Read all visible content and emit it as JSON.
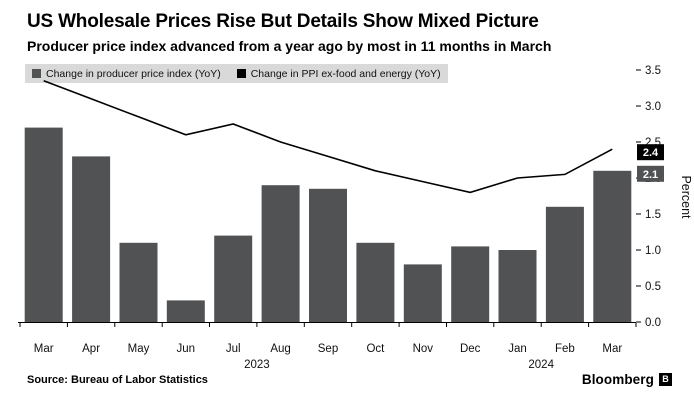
{
  "header": {
    "title": "US Wholesale Prices Rise But Details Show Mixed Picture",
    "subtitle": "Producer price index advanced from a year ago by most in 11 months in March"
  },
  "legend": [
    {
      "label": "Change in producer price index (YoY)",
      "color": "#515254"
    },
    {
      "label": "Change in PPI ex-food and energy (YoY)",
      "color": "#000000"
    }
  ],
  "chart_data": {
    "type": "bar",
    "categories": [
      "Mar",
      "Apr",
      "May",
      "Jun",
      "Jul",
      "Aug",
      "Sep",
      "Oct",
      "Nov",
      "Dec",
      "Jan",
      "Feb",
      "Mar"
    ],
    "series": [
      {
        "name": "Change in producer price index (YoY)",
        "type": "bar",
        "color": "#515254",
        "values": [
          2.7,
          2.3,
          1.1,
          0.3,
          1.2,
          1.9,
          1.85,
          1.1,
          0.8,
          1.05,
          1.0,
          1.6,
          2.1
        ]
      },
      {
        "name": "Change in PPI ex-food and energy (YoY)",
        "type": "line",
        "color": "#000000",
        "values": [
          3.35,
          3.1,
          2.85,
          2.6,
          2.75,
          2.5,
          2.3,
          2.1,
          1.95,
          1.8,
          2.0,
          2.05,
          2.4
        ]
      }
    ],
    "end_labels": [
      {
        "text": "2.4",
        "bg": "#000000",
        "series": 1
      },
      {
        "text": "2.1",
        "bg": "#515254",
        "series": 0
      }
    ],
    "title": "US Wholesale Prices Rise But Details Show Mixed Picture",
    "xlabel": "",
    "ylabel": "Percent",
    "ylim": [
      0,
      3.5
    ],
    "yticks": [
      "3.5",
      "3.0",
      "2.5",
      "2.0",
      "1.5",
      "1.0",
      "0.5",
      "0.0"
    ],
    "year_labels": [
      {
        "text": "2023",
        "position_index": 5
      },
      {
        "text": "2024",
        "position_index": 11
      }
    ],
    "legend_position": "top-left",
    "grid": false
  },
  "footer": {
    "source": "Source: Bureau of Labor Statistics",
    "brand": "Bloomberg",
    "brand_mark": "B"
  }
}
